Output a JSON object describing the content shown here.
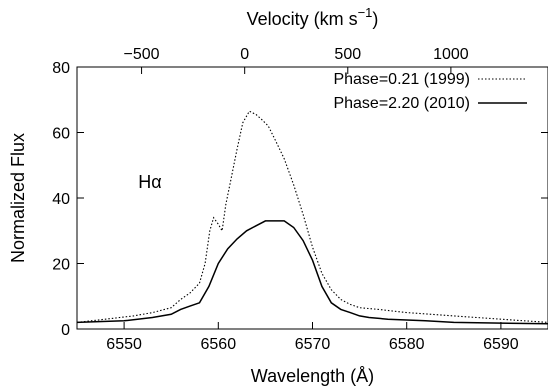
{
  "chart_data": {
    "type": "line",
    "xlabel": "Wavelength (Å)",
    "ylabel": "Normalized Flux",
    "top_axis": {
      "label_main": "Velocity (km s",
      "label_sup": "−1",
      "label_end": ")",
      "ticks": [
        -500,
        0,
        500,
        1000
      ],
      "tick_labels": [
        "−500",
        "0",
        "500",
        "1000"
      ],
      "rest_wavelength": 6562.8,
      "c_kms": 299792.458
    },
    "xlim": [
      6545,
      6595
    ],
    "ylim": [
      0,
      80
    ],
    "x_ticks": [
      6550,
      6560,
      6570,
      6580,
      6590
    ],
    "x_tick_labels": [
      "6550",
      "6560",
      "6570",
      "6580",
      "6590"
    ],
    "y_ticks": [
      0,
      20,
      40,
      60,
      80
    ],
    "y_tick_labels": [
      "0",
      "20",
      "40",
      "60",
      "80"
    ],
    "annotation": {
      "text": "Hα",
      "x": 6551.5,
      "y": 43
    },
    "legend_position": "top-right",
    "series": [
      {
        "name": "Phase=0.21 (1999)",
        "style": "dotted",
        "color": "#000000",
        "x": [
          6545,
          6548,
          6551,
          6553,
          6555,
          6556,
          6557,
          6558,
          6558.6,
          6559.1,
          6559.5,
          6560,
          6560.4,
          6560.8,
          6561.3,
          6562,
          6562.6,
          6563.3,
          6564,
          6564.6,
          6565.3,
          6566,
          6567,
          6568,
          6569,
          6570,
          6571,
          6572,
          6573,
          6574,
          6575,
          6577,
          6580,
          6585,
          6590,
          6595
        ],
        "y": [
          2,
          3,
          4,
          5,
          6.5,
          9,
          11,
          14,
          20,
          30,
          34,
          32,
          30,
          38,
          45,
          55,
          63,
          66.5,
          65.5,
          64,
          62,
          58,
          52,
          44,
          35,
          25,
          17,
          12,
          9,
          7.5,
          6.5,
          6,
          5,
          4,
          3,
          2
        ]
      },
      {
        "name": "Phase=2.20 (2010)",
        "style": "solid",
        "color": "#000000",
        "x": [
          6545,
          6550,
          6553,
          6555,
          6556,
          6557,
          6558,
          6559,
          6560,
          6561,
          6562,
          6563,
          6564,
          6565,
          6566,
          6567,
          6568,
          6569,
          6570,
          6571,
          6572,
          6573,
          6574,
          6575,
          6576,
          6578,
          6582,
          6585,
          6590,
          6595
        ],
        "y": [
          2,
          2.5,
          3.5,
          4.5,
          6,
          7,
          8,
          13,
          20,
          24.5,
          27.5,
          30,
          31.5,
          33,
          33,
          33,
          31,
          27,
          21,
          13,
          8,
          6,
          5,
          4,
          3.5,
          3,
          2.5,
          2,
          1.8,
          1.6
        ]
      }
    ]
  }
}
